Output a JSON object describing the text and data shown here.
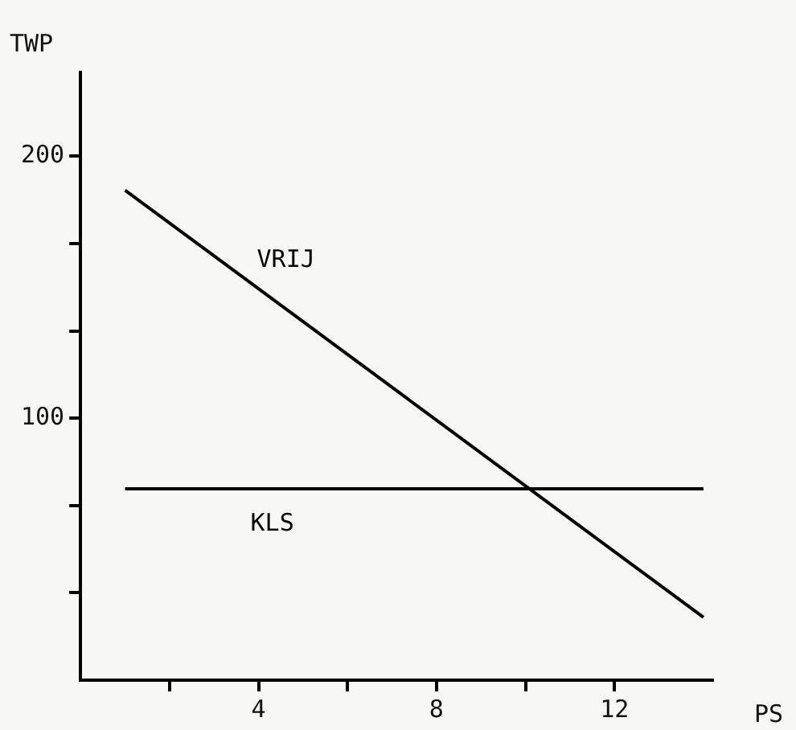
{
  "chart_data": {
    "type": "line",
    "xlabel": "PS",
    "ylabel": "TWP",
    "x": [
      1,
      14
    ],
    "xlim": [
      0,
      14.2
    ],
    "ylim": [
      0,
      232
    ],
    "xticks": [
      {
        "value": 2,
        "label": null
      },
      4,
      {
        "value": 6,
        "label": null
      },
      8,
      {
        "value": 10,
        "label": null
      },
      12
    ],
    "yticks": [
      {
        "value": 33.3,
        "label": null
      },
      {
        "value": 66.7,
        "label": null
      },
      100,
      {
        "value": 133.3,
        "label": null
      },
      {
        "value": 166.7,
        "label": null
      },
      200
    ],
    "series": [
      {
        "name": "VRIJ",
        "color": "#000000",
        "values": [
          187,
          24
        ]
      },
      {
        "name": "KLS",
        "color": "#000000",
        "values": [
          73,
          73
        ]
      }
    ],
    "grid": false,
    "legend": false,
    "marker": "none",
    "line_style": "solid"
  }
}
